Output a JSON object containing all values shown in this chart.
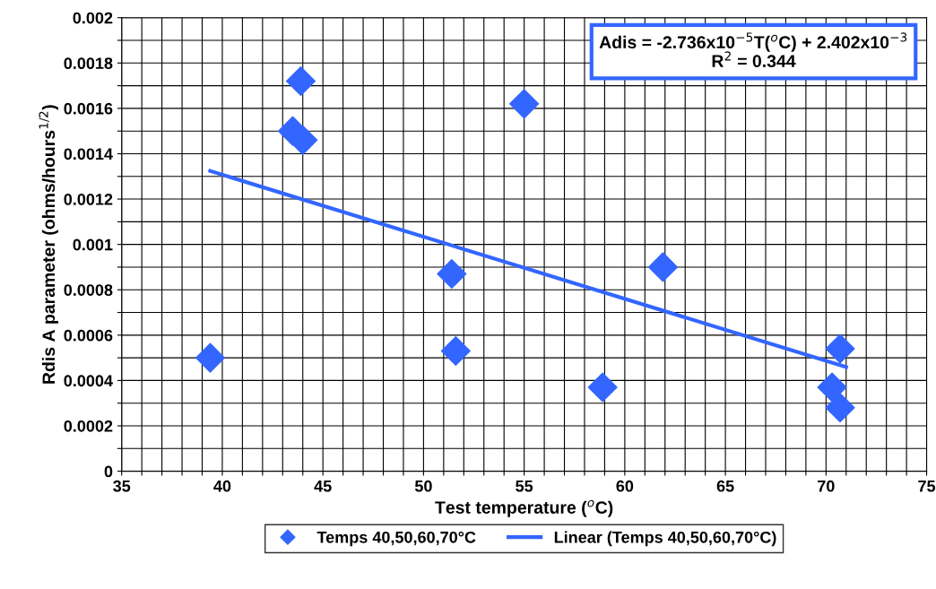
{
  "chart_data": {
    "type": "scatter",
    "xlabel": "Test temperature ($^{o}$C)",
    "ylabel": "Rdis A parameter (ohms/hours$^{1/2}$)",
    "annotations": [
      "Adis = -2.736x10$^{−5}$T($^{o}$C) + 2.402x10$^{−3}$\nR$^{2}$ = 0.344"
    ],
    "series": [
      {
        "name": "Temps 40,50,60,70°C",
        "marker": "diamond",
        "color": "#3366ff",
        "x": [
          39.4,
          43.9,
          43.5,
          44.0,
          55.0,
          51.4,
          51.6,
          58.9,
          61.9,
          70.3,
          70.7,
          70.7
        ],
        "values": [
          0.0005,
          0.00172,
          0.0015,
          0.00146,
          0.00162,
          0.00087,
          0.00053,
          0.00037,
          0.0009,
          0.00037,
          0.00054,
          0.00028
        ]
      },
      {
        "name": "Linear (Temps 40,50,60,70°C)",
        "type": "line",
        "marker": "none",
        "line_style": "solid",
        "color": "#3366ff",
        "x": [
          39.4,
          71.0
        ],
        "values": [
          0.001324,
          0.000459
        ]
      }
    ],
    "xlim": [
      35,
      75
    ],
    "xticks": [
      35,
      {
        "value": 36,
        "label": null
      },
      {
        "value": 37,
        "label": null
      },
      {
        "value": 38,
        "label": null
      },
      {
        "value": 39,
        "label": null
      },
      40,
      {
        "value": 41,
        "label": null
      },
      {
        "value": 42,
        "label": null
      },
      {
        "value": 43,
        "label": null
      },
      {
        "value": 44,
        "label": null
      },
      45,
      {
        "value": 46,
        "label": null
      },
      {
        "value": 47,
        "label": null
      },
      {
        "value": 48,
        "label": null
      },
      {
        "value": 49,
        "label": null
      },
      50,
      {
        "value": 51,
        "label": null
      },
      {
        "value": 52,
        "label": null
      },
      {
        "value": 53,
        "label": null
      },
      {
        "value": 54,
        "label": null
      },
      55,
      {
        "value": 56,
        "label": null
      },
      {
        "value": 57,
        "label": null
      },
      {
        "value": 58,
        "label": null
      },
      {
        "value": 59,
        "label": null
      },
      60,
      {
        "value": 61,
        "label": null
      },
      {
        "value": 62,
        "label": null
      },
      {
        "value": 63,
        "label": null
      },
      {
        "value": 64,
        "label": null
      },
      65,
      {
        "value": 66,
        "label": null
      },
      {
        "value": 67,
        "label": null
      },
      {
        "value": 68,
        "label": null
      },
      {
        "value": 69,
        "label": null
      },
      70,
      {
        "value": 71,
        "label": null
      },
      {
        "value": 72,
        "label": null
      },
      {
        "value": 73,
        "label": null
      },
      {
        "value": 74,
        "label": null
      },
      75
    ],
    "ylim": [
      0,
      0.002
    ],
    "yticks": [
      0,
      {
        "value": 0.0001,
        "label": null
      },
      0.0002,
      {
        "value": 0.0003,
        "label": null
      },
      0.0004,
      {
        "value": 0.0005,
        "label": null
      },
      0.0006,
      {
        "value": 0.0007,
        "label": null
      },
      0.0008,
      {
        "value": 0.0009,
        "label": null
      },
      0.001,
      {
        "value": 0.0011,
        "label": null
      },
      0.0012,
      {
        "value": 0.0013,
        "label": null
      },
      0.0014,
      {
        "value": 0.0015,
        "label": null
      },
      0.0016,
      {
        "value": 0.0017,
        "label": null
      },
      0.0018,
      {
        "value": 0.0019,
        "label": null
      },
      0.002
    ],
    "grid": true,
    "legend": "bottom"
  }
}
